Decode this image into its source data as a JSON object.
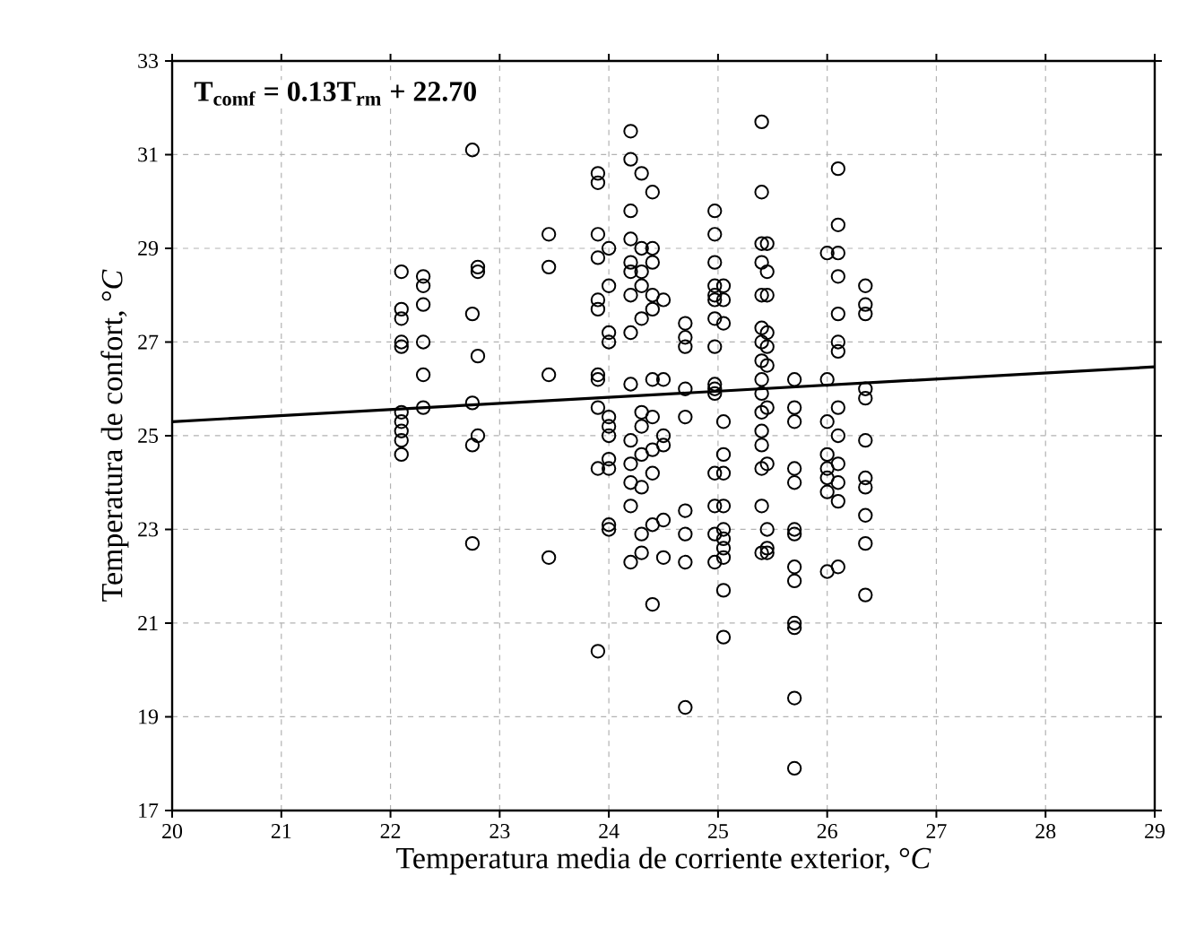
{
  "chart_data": {
    "type": "scatter",
    "xlabel": "Temperatura media de corriente exterior, °*C*",
    "ylabel": "Temperatura de confort, °*C*",
    "annotations": [
      "T$_{comf}$ = 0.13T$_{rm}$ + 22.70"
    ],
    "xlim": [
      20,
      29
    ],
    "ylim": [
      17,
      33
    ],
    "xticks": [
      20,
      21,
      22,
      23,
      24,
      25,
      26,
      27,
      28,
      29
    ],
    "yticks": [
      17,
      19,
      21,
      23,
      25,
      27,
      29,
      31,
      33
    ],
    "grid": true,
    "marker": "circle",
    "series": [
      {
        "color": "#000000",
        "x": [
          22.1,
          22.1,
          22.1,
          22.1,
          22.1,
          22.1,
          22.1,
          22.1,
          22.1,
          22.1,
          22.3,
          22.3,
          22.3,
          22.3,
          22.3,
          22.3,
          22.75,
          22.75,
          22.75,
          22.75,
          22.75,
          22.8,
          22.8,
          22.8,
          22.8,
          23.45,
          23.45,
          23.45,
          23.45,
          23.9,
          23.9,
          23.9,
          23.9,
          23.9,
          23.9,
          23.9,
          23.9,
          23.9,
          23.9,
          23.9,
          24.0,
          24.0,
          24.0,
          24.0,
          24.0,
          24.0,
          24.0,
          24.0,
          24.0,
          24.0,
          24.0,
          24.2,
          24.2,
          24.2,
          24.2,
          24.2,
          24.2,
          24.2,
          24.2,
          24.2,
          24.2,
          24.2,
          24.2,
          24.2,
          24.2,
          24.3,
          24.3,
          24.3,
          24.3,
          24.3,
          24.3,
          24.3,
          24.3,
          24.3,
          24.3,
          24.3,
          24.4,
          24.4,
          24.4,
          24.4,
          24.4,
          24.4,
          24.4,
          24.4,
          24.4,
          24.4,
          24.4,
          24.5,
          24.5,
          24.5,
          24.5,
          24.5,
          24.5,
          24.7,
          24.7,
          24.7,
          24.7,
          24.7,
          24.7,
          24.7,
          24.7,
          24.7,
          24.97,
          24.97,
          24.97,
          24.97,
          24.97,
          24.97,
          24.97,
          24.97,
          24.97,
          24.97,
          24.97,
          24.97,
          24.97,
          24.97,
          24.97,
          25.05,
          25.05,
          25.05,
          25.05,
          25.05,
          25.05,
          25.05,
          25.05,
          25.05,
          25.05,
          25.05,
          25.05,
          25.05,
          25.4,
          25.4,
          25.4,
          25.4,
          25.4,
          25.4,
          25.4,
          25.4,
          25.4,
          25.4,
          25.4,
          25.4,
          25.4,
          25.4,
          25.4,
          25.4,
          25.45,
          25.45,
          25.45,
          25.45,
          25.45,
          25.45,
          25.45,
          25.45,
          25.45,
          25.45,
          25.45,
          25.7,
          25.7,
          25.7,
          25.7,
          25.7,
          25.7,
          25.7,
          25.7,
          25.7,
          25.7,
          25.7,
          25.7,
          25.7,
          26.0,
          26.0,
          26.0,
          26.0,
          26.0,
          26.0,
          26.0,
          26.0,
          26.1,
          26.1,
          26.1,
          26.1,
          26.1,
          26.1,
          26.1,
          26.1,
          26.1,
          26.1,
          26.1,
          26.1,
          26.1,
          26.35,
          26.35,
          26.35,
          26.35,
          26.35,
          26.35,
          26.35,
          26.35,
          26.35,
          26.35,
          26.35
        ],
        "values": [
          28.5,
          27.7,
          27.5,
          27.0,
          26.9,
          25.5,
          25.3,
          25.1,
          24.9,
          24.6,
          28.4,
          28.2,
          27.8,
          27.0,
          26.3,
          25.6,
          31.1,
          27.6,
          25.7,
          24.8,
          22.7,
          28.6,
          28.5,
          26.7,
          25.0,
          29.3,
          28.6,
          26.3,
          22.4,
          30.6,
          30.4,
          29.3,
          28.8,
          27.9,
          27.7,
          26.3,
          26.2,
          25.6,
          24.3,
          20.4,
          29.0,
          28.2,
          27.2,
          27.0,
          25.4,
          25.2,
          25.0,
          24.5,
          24.3,
          23.1,
          23.0,
          31.5,
          30.9,
          29.8,
          29.2,
          28.7,
          28.5,
          28.0,
          27.2,
          26.1,
          24.9,
          24.4,
          24.0,
          23.5,
          22.3,
          30.6,
          29.0,
          28.5,
          28.2,
          27.5,
          25.5,
          25.2,
          24.6,
          23.9,
          22.9,
          22.5,
          30.2,
          29.0,
          28.7,
          28.0,
          27.7,
          26.2,
          25.4,
          24.7,
          24.2,
          23.1,
          21.4,
          27.9,
          26.2,
          25.0,
          24.8,
          23.2,
          22.4,
          27.4,
          27.1,
          26.9,
          26.0,
          25.4,
          23.4,
          22.9,
          22.3,
          19.2,
          29.8,
          29.3,
          28.7,
          28.2,
          28.0,
          27.9,
          27.5,
          26.9,
          26.1,
          26.0,
          25.9,
          24.2,
          23.5,
          22.9,
          22.3,
          28.2,
          27.9,
          27.4,
          25.3,
          24.6,
          24.2,
          23.5,
          23.0,
          22.8,
          22.6,
          22.4,
          21.7,
          20.7,
          31.7,
          30.2,
          29.1,
          28.7,
          28.0,
          27.3,
          27.0,
          26.6,
          26.2,
          25.9,
          25.5,
          25.1,
          24.8,
          24.3,
          23.5,
          22.5,
          29.1,
          28.5,
          28.0,
          27.2,
          26.9,
          26.5,
          25.6,
          24.4,
          23.0,
          22.6,
          22.5,
          26.2,
          25.6,
          25.3,
          24.3,
          24.0,
          23.0,
          22.9,
          22.2,
          21.9,
          21.0,
          20.9,
          19.4,
          17.9,
          28.9,
          26.2,
          25.3,
          24.6,
          24.3,
          24.1,
          23.8,
          22.1,
          30.7,
          29.5,
          28.9,
          28.4,
          27.6,
          27.0,
          26.8,
          25.6,
          25.0,
          24.4,
          24.0,
          23.6,
          22.2,
          28.2,
          27.8,
          27.6,
          26.0,
          25.8,
          24.9,
          24.1,
          23.9,
          23.3,
          22.7,
          21.6
        ]
      },
      {
        "type": "line",
        "color": "#000000",
        "marker": "none",
        "line_style": "solid",
        "x": [
          20,
          29
        ],
        "values": [
          25.3,
          26.47
        ]
      }
    ]
  }
}
